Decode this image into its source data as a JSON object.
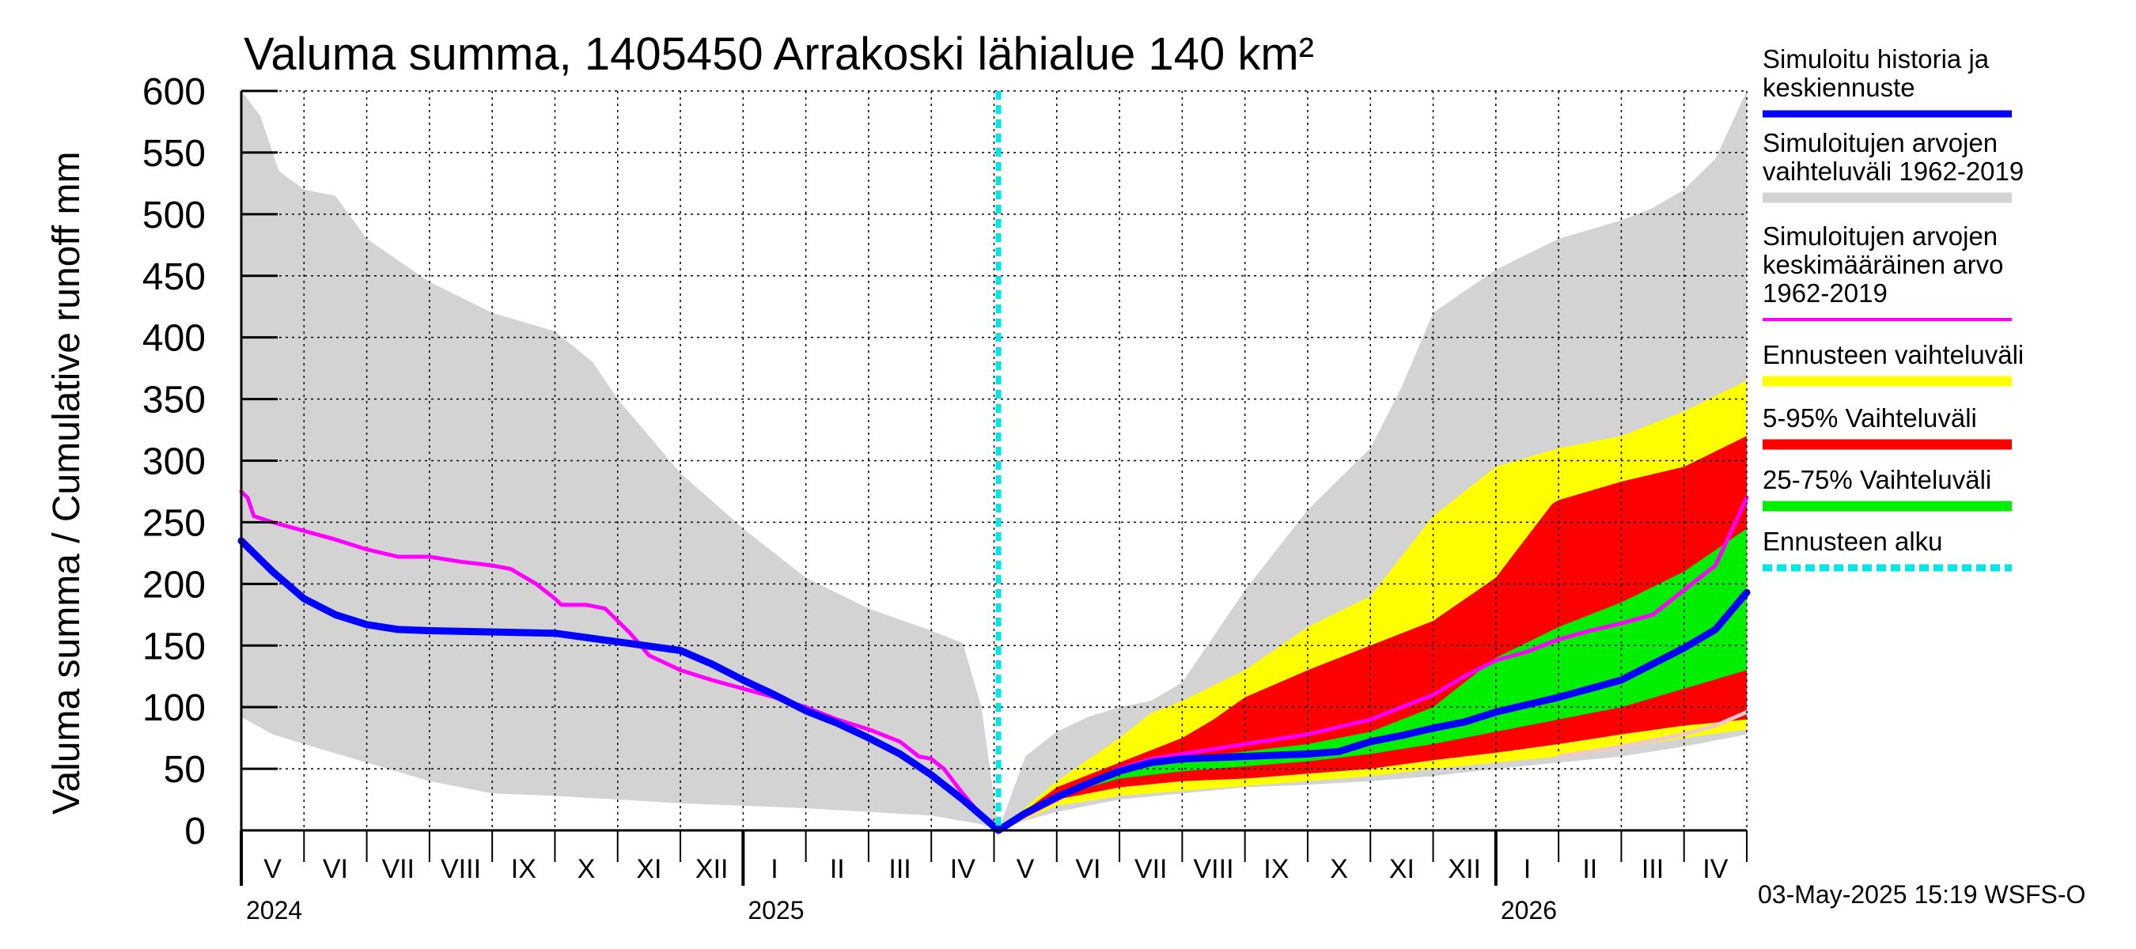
{
  "chart_data": {
    "type": "area",
    "title": "Valuma summa, 1405450 Arrakoski lähialue 140 km²",
    "ylabel": "Valuma summa / Cumulative runoff    mm",
    "xlabel": "",
    "ylim": [
      0,
      600
    ],
    "yticks": [
      0,
      50,
      100,
      150,
      200,
      250,
      300,
      350,
      400,
      450,
      500,
      550,
      600
    ],
    "x_unit": "months since 1 May 2024",
    "xlim": [
      0,
      24
    ],
    "forecast_start": 12.07,
    "months": [
      {
        "label": "V",
        "x": 0.5
      },
      {
        "label": "VI",
        "x": 1.5
      },
      {
        "label": "VII",
        "x": 2.5
      },
      {
        "label": "VIII",
        "x": 3.5
      },
      {
        "label": "IX",
        "x": 4.5
      },
      {
        "label": "X",
        "x": 5.5
      },
      {
        "label": "XI",
        "x": 6.5
      },
      {
        "label": "XII",
        "x": 7.5
      },
      {
        "label": "I",
        "x": 8.5
      },
      {
        "label": "II",
        "x": 9.5
      },
      {
        "label": "III",
        "x": 10.5
      },
      {
        "label": "IV",
        "x": 11.5
      },
      {
        "label": "V",
        "x": 12.5
      },
      {
        "label": "VI",
        "x": 13.5
      },
      {
        "label": "VII",
        "x": 14.5
      },
      {
        "label": "VIII",
        "x": 15.5
      },
      {
        "label": "IX",
        "x": 16.5
      },
      {
        "label": "X",
        "x": 17.5
      },
      {
        "label": "XI",
        "x": 18.5
      },
      {
        "label": "XII",
        "x": 19.5
      },
      {
        "label": "I",
        "x": 20.5
      },
      {
        "label": "II",
        "x": 21.5
      },
      {
        "label": "III",
        "x": 22.5
      },
      {
        "label": "IV",
        "x": 23.5
      }
    ],
    "years": [
      {
        "label": "2024",
        "x": 0
      },
      {
        "label": "2025",
        "x": 8
      },
      {
        "label": "2026",
        "x": 20
      }
    ],
    "year_boundaries": [
      8,
      20
    ],
    "series": [
      {
        "name": "Simuloitujen arvojen vaihteluväli 1962-2019",
        "kind": "band",
        "color": "#d3d3d3",
        "upper": [
          [
            0,
            600
          ],
          [
            0.3,
            580
          ],
          [
            0.6,
            535
          ],
          [
            1,
            520
          ],
          [
            1.5,
            515
          ],
          [
            2,
            480
          ],
          [
            3,
            445
          ],
          [
            4,
            420
          ],
          [
            5,
            405
          ],
          [
            5.6,
            380
          ],
          [
            6,
            350
          ],
          [
            7,
            290
          ],
          [
            8,
            245
          ],
          [
            9,
            205
          ],
          [
            10,
            180
          ],
          [
            11,
            162
          ],
          [
            11.5,
            152
          ],
          [
            11.8,
            100
          ],
          [
            12.07,
            0
          ],
          [
            12.5,
            60
          ],
          [
            13,
            80
          ],
          [
            13.5,
            92
          ],
          [
            14,
            100
          ],
          [
            14.5,
            105
          ],
          [
            15,
            120
          ],
          [
            16,
            195
          ],
          [
            17,
            260
          ],
          [
            18,
            310
          ],
          [
            18.5,
            360
          ],
          [
            19,
            420
          ],
          [
            20,
            455
          ],
          [
            21,
            480
          ],
          [
            22,
            495
          ],
          [
            22.5,
            505
          ],
          [
            23,
            520
          ],
          [
            23.5,
            545
          ],
          [
            24,
            600
          ]
        ],
        "lower": [
          [
            0,
            92
          ],
          [
            0.5,
            78
          ],
          [
            1,
            70
          ],
          [
            2,
            55
          ],
          [
            3,
            40
          ],
          [
            4,
            30
          ],
          [
            5,
            28
          ],
          [
            6,
            25
          ],
          [
            7,
            22
          ],
          [
            8,
            20
          ],
          [
            9,
            18
          ],
          [
            10,
            15
          ],
          [
            11,
            12
          ],
          [
            11.8,
            5
          ],
          [
            12.07,
            0
          ],
          [
            12.5,
            8
          ],
          [
            13,
            15
          ],
          [
            14,
            25
          ],
          [
            15,
            30
          ],
          [
            16,
            35
          ],
          [
            17,
            37
          ],
          [
            18,
            40
          ],
          [
            19,
            44
          ],
          [
            20,
            50
          ],
          [
            21,
            55
          ],
          [
            22,
            60
          ],
          [
            23,
            68
          ],
          [
            24,
            78
          ]
        ]
      },
      {
        "name": "Ennusteen vaihteluväli",
        "kind": "band",
        "color": "#ffff00",
        "upper": [
          [
            12.07,
            0
          ],
          [
            13,
            40
          ],
          [
            14,
            75
          ],
          [
            14.5,
            95
          ],
          [
            15,
            105
          ],
          [
            16,
            130
          ],
          [
            17,
            165
          ],
          [
            18,
            190
          ],
          [
            19,
            255
          ],
          [
            20,
            295
          ],
          [
            21,
            310
          ],
          [
            22,
            320
          ],
          [
            23,
            340
          ],
          [
            24,
            365
          ]
        ],
        "lower": [
          [
            12.07,
            0
          ],
          [
            13,
            20
          ],
          [
            14,
            28
          ],
          [
            15,
            32
          ],
          [
            16,
            36
          ],
          [
            17,
            40
          ],
          [
            18,
            44
          ],
          [
            19,
            50
          ],
          [
            20,
            55
          ],
          [
            21,
            60
          ],
          [
            22,
            67
          ],
          [
            23,
            75
          ],
          [
            24,
            82
          ]
        ]
      },
      {
        "name": "5-95% Vaihteluväli",
        "kind": "band",
        "color": "#ff0000",
        "upper": [
          [
            12.07,
            0
          ],
          [
            13,
            35
          ],
          [
            14,
            55
          ],
          [
            15,
            75
          ],
          [
            15.5,
            90
          ],
          [
            16,
            108
          ],
          [
            17,
            130
          ],
          [
            18,
            150
          ],
          [
            19,
            170
          ],
          [
            20,
            205
          ],
          [
            20.9,
            265
          ],
          [
            21,
            268
          ],
          [
            22,
            283
          ],
          [
            23,
            295
          ],
          [
            24,
            320
          ]
        ],
        "lower": [
          [
            12.07,
            0
          ],
          [
            13,
            25
          ],
          [
            14,
            35
          ],
          [
            15,
            40
          ],
          [
            16,
            42
          ],
          [
            17,
            46
          ],
          [
            18,
            50
          ],
          [
            19,
            57
          ],
          [
            20,
            63
          ],
          [
            21,
            70
          ],
          [
            22,
            78
          ],
          [
            23,
            85
          ],
          [
            24,
            90
          ]
        ]
      },
      {
        "name": "25-75% Vaihteluväli",
        "kind": "band",
        "color": "#00ee00",
        "upper": [
          [
            12.07,
            0
          ],
          [
            13,
            30
          ],
          [
            14,
            48
          ],
          [
            15,
            58
          ],
          [
            16,
            64
          ],
          [
            17,
            70
          ],
          [
            18,
            80
          ],
          [
            19,
            100
          ],
          [
            20,
            140
          ],
          [
            21,
            165
          ],
          [
            22,
            185
          ],
          [
            23,
            210
          ],
          [
            24,
            245
          ]
        ],
        "lower": [
          [
            12.07,
            0
          ],
          [
            13,
            28
          ],
          [
            14,
            42
          ],
          [
            15,
            48
          ],
          [
            16,
            52
          ],
          [
            17,
            56
          ],
          [
            18,
            62
          ],
          [
            19,
            70
          ],
          [
            20,
            80
          ],
          [
            21,
            90
          ],
          [
            22,
            100
          ],
          [
            23,
            115
          ],
          [
            24,
            130
          ]
        ]
      },
      {
        "name": "Simuloitujen arvojen keskimääräinen arvo 1962-2019",
        "kind": "line",
        "color": "#ff00ff",
        "width": 5,
        "points": [
          [
            0,
            275
          ],
          [
            0.1,
            270
          ],
          [
            0.2,
            255
          ],
          [
            0.5,
            250
          ],
          [
            1,
            243
          ],
          [
            1.5,
            236
          ],
          [
            2,
            228
          ],
          [
            2.5,
            222
          ],
          [
            3,
            222
          ],
          [
            3.5,
            218
          ],
          [
            4,
            215
          ],
          [
            4.3,
            212
          ],
          [
            4.7,
            200
          ],
          [
            5,
            188
          ],
          [
            5.1,
            183
          ],
          [
            5.5,
            183
          ],
          [
            5.8,
            180
          ],
          [
            6,
            170
          ],
          [
            6.2,
            160
          ],
          [
            6.5,
            142
          ],
          [
            7,
            130
          ],
          [
            7.5,
            122
          ],
          [
            8,
            115
          ],
          [
            8.5,
            108
          ],
          [
            9,
            100
          ],
          [
            9.5,
            90
          ],
          [
            10,
            82
          ],
          [
            10.5,
            72
          ],
          [
            10.8,
            60
          ],
          [
            11,
            58
          ],
          [
            11.2,
            50
          ],
          [
            11.5,
            30
          ],
          [
            11.8,
            12
          ],
          [
            12.07,
            0
          ],
          [
            12.5,
            12
          ],
          [
            13,
            25
          ],
          [
            13.5,
            38
          ],
          [
            14,
            50
          ],
          [
            14.5,
            58
          ],
          [
            15,
            62
          ],
          [
            16,
            70
          ],
          [
            17,
            78
          ],
          [
            18,
            90
          ],
          [
            19,
            110
          ],
          [
            19.5,
            125
          ],
          [
            20,
            138
          ],
          [
            20.5,
            145
          ],
          [
            21,
            155
          ],
          [
            21.5,
            162
          ],
          [
            22,
            168
          ],
          [
            22.5,
            175
          ],
          [
            23,
            195
          ],
          [
            23.5,
            215
          ],
          [
            24,
            270
          ]
        ]
      },
      {
        "name": "Simuloitu historia ja keskiennuste",
        "kind": "line",
        "color": "#0000ff",
        "width": 9,
        "points": [
          [
            0,
            235
          ],
          [
            0.5,
            210
          ],
          [
            1,
            188
          ],
          [
            1.5,
            175
          ],
          [
            2,
            167
          ],
          [
            2.5,
            163
          ],
          [
            3,
            162
          ],
          [
            4,
            161
          ],
          [
            5,
            160
          ],
          [
            6,
            153
          ],
          [
            7,
            146
          ],
          [
            7.5,
            135
          ],
          [
            8,
            122
          ],
          [
            8.5,
            110
          ],
          [
            9,
            97
          ],
          [
            9.5,
            87
          ],
          [
            10,
            75
          ],
          [
            10.5,
            62
          ],
          [
            11,
            45
          ],
          [
            11.5,
            25
          ],
          [
            12.07,
            0
          ],
          [
            12.5,
            14
          ],
          [
            13,
            27
          ],
          [
            13.5,
            38
          ],
          [
            14,
            48
          ],
          [
            14.5,
            55
          ],
          [
            15,
            58
          ],
          [
            16,
            60
          ],
          [
            17,
            62
          ],
          [
            17.5,
            64
          ],
          [
            18,
            72
          ],
          [
            18.5,
            77
          ],
          [
            19,
            83
          ],
          [
            19.5,
            88
          ],
          [
            20,
            96
          ],
          [
            21,
            108
          ],
          [
            22,
            122
          ],
          [
            22.5,
            135
          ],
          [
            23,
            148
          ],
          [
            23.5,
            163
          ],
          [
            24,
            193
          ]
        ]
      },
      {
        "name": "Ennusteen alin",
        "kind": "line",
        "color": "#f0c8c8",
        "width": 5,
        "points": [
          [
            21,
            60
          ],
          [
            22,
            68
          ],
          [
            23,
            78
          ],
          [
            23.5,
            85
          ],
          [
            24,
            96
          ]
        ]
      }
    ],
    "legend": [
      {
        "label": "Simuloitu historia ja keskiennuste",
        "color": "#0000ff",
        "style": "solid"
      },
      {
        "label": "Simuloitujen arvojen vaihteluväli 1962-2019",
        "color": "#d3d3d3",
        "style": "solid"
      },
      {
        "label": "Simuloitujen arvojen keskimääräinen arvo 1962-2019",
        "color": "#ff00ff",
        "style": "thin"
      },
      {
        "label": "Ennusteen vaihteluväli",
        "color": "#ffff00",
        "style": "solid"
      },
      {
        "label": "5-95% Vaihteluväli",
        "color": "#ff0000",
        "style": "solid"
      },
      {
        "label": "25-75% Vaihteluväli",
        "color": "#00ee00",
        "style": "solid"
      },
      {
        "label": "Ennusteen alku",
        "color": "#00e5e5",
        "style": "dashed"
      }
    ],
    "legend_lines": [
      [
        "Simuloitu historia ja",
        "keskiennuste"
      ],
      [
        "Simuloitujen arvojen",
        "vaihteluväli 1962-2019"
      ],
      [
        "Simuloitujen arvojen",
        "keskimääräinen arvo",
        "   1962-2019"
      ],
      [
        "Ennusteen vaihteluväli"
      ],
      [
        "5-95% Vaihteluväli"
      ],
      [
        "25-75% Vaihteluväli"
      ],
      [
        "Ennusteen alku"
      ]
    ],
    "footer": "03-May-2025 15:19 WSFS-O"
  }
}
